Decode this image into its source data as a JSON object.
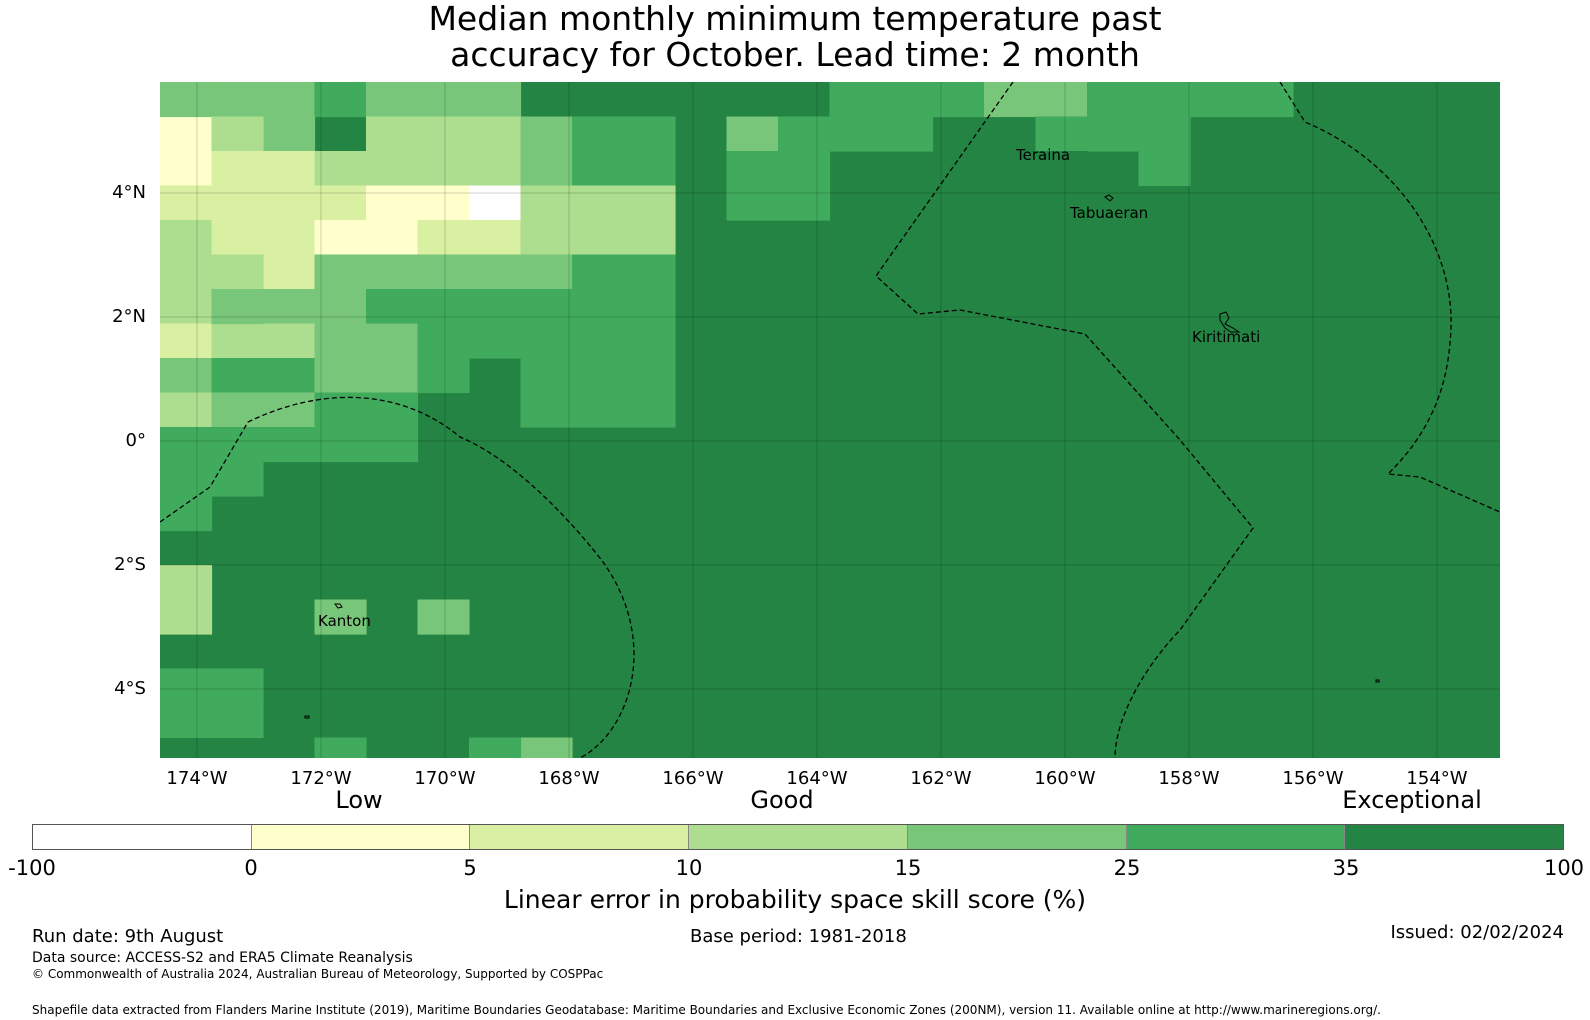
{
  "title": {
    "line1": "Median monthly minimum temperature past",
    "line2": "accuracy for October. Lead time: 2 month"
  },
  "map": {
    "lat_ticks": [
      "4°N",
      "2°N",
      "0°",
      "2°S",
      "4°S"
    ],
    "lon_ticks": [
      "174°W",
      "172°W",
      "170°W",
      "168°W",
      "166°W",
      "164°W",
      "162°W",
      "160°W",
      "158°W",
      "156°W",
      "154°W"
    ],
    "places": [
      "Teraina",
      "Tabuaeran",
      "Kiritimati",
      "Kanton"
    ],
    "background_color": "#238443"
  },
  "legend": {
    "categories": [
      "Low",
      "Good",
      "Exceptional"
    ],
    "tick_labels": [
      "-100",
      "0",
      "5",
      "10",
      "15",
      "25",
      "35",
      "100"
    ],
    "colors": [
      "#ffffff",
      "#ffffcc",
      "#d9f0a3",
      "#addd8e",
      "#78c679",
      "#41ab5d",
      "#238443"
    ],
    "label": "Linear error in probability space skill score (%)"
  },
  "footer": {
    "run_date": "Run date: 9th August",
    "base_period": "Base period: 1981-2018",
    "issued": "Issued: 02/02/2024",
    "data_source": "Data source: ACCESS-S2 and ERA5 Climate Reanalysis",
    "copyright": "© Commonwealth of Australia 2024, Australian Bureau of Meteorology, Supported by COSPPac",
    "shapefile": "Shapefile data extracted from Flanders Marine Institute (2019), Maritime Boundaries Geodatabase: Maritime Boundaries and Exclusive Economic Zones (200NM), version 11. Available online at http://www.marineregions.org/."
  }
}
